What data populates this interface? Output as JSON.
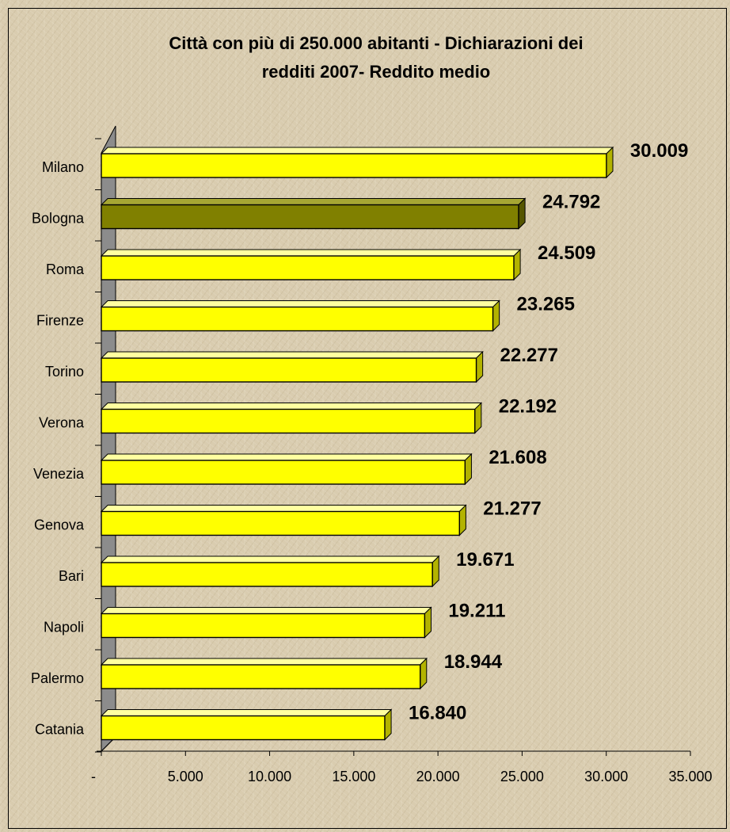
{
  "chart_data": {
    "type": "bar",
    "orientation": "horizontal",
    "title_line1": "Città con più di 250.000 abitanti - Dichiarazioni dei",
    "title_line2": "redditi 2007- Reddito medio",
    "categories": [
      "Milano",
      "Bologna",
      "Roma",
      "Firenze",
      "Torino",
      "Verona",
      "Venezia",
      "Genova",
      "Bari",
      "Napoli",
      "Palermo",
      "Catania"
    ],
    "values": [
      30009,
      24792,
      24509,
      23265,
      22277,
      22192,
      21608,
      21277,
      19671,
      19211,
      18944,
      16840
    ],
    "value_labels": [
      "30.009",
      "24.792",
      "24.509",
      "23.265",
      "22.277",
      "22.192",
      "21.608",
      "21.277",
      "19.671",
      "19.211",
      "18.944",
      "16.840"
    ],
    "highlight_category": "Bologna",
    "xlim": [
      0,
      35000
    ],
    "x_ticks": [
      0,
      5000,
      10000,
      15000,
      20000,
      25000,
      30000,
      35000
    ],
    "x_tick_labels": [
      "-",
      "5.000",
      "10.000",
      "15.000",
      "20.000",
      "25.000",
      "30.000",
      "35.000"
    ],
    "grid": false,
    "legend": "none",
    "colors": {
      "bar": "#ffff00",
      "bar_side": "#b3b300",
      "bar_top": "#ffffa0",
      "highlight": "#808000",
      "highlight_side": "#555500",
      "highlight_top": "#a6a633",
      "wall": "#8c8c8c"
    }
  }
}
